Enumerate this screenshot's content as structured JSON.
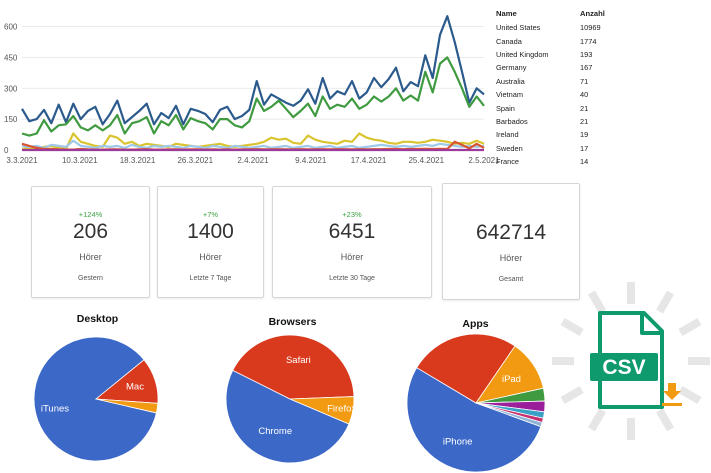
{
  "chart_data": [
    {
      "type": "line",
      "x_ticks": [
        "3.3.2021",
        "10.3.2021",
        "18.3.2021",
        "26.3.2021",
        "2.4.2021",
        "9.4.2021",
        "17.4.2021",
        "25.4.2021",
        "2.5.2021"
      ],
      "y_ticks": [
        "0",
        "150",
        "300",
        "450",
        "600"
      ],
      "ylim": [
        0,
        690
      ],
      "n_points": 64,
      "grid": true,
      "series": [
        {
          "color": "#2b5a8c",
          "values": [
            200,
            140,
            150,
            195,
            130,
            220,
            135,
            225,
            150,
            190,
            210,
            125,
            175,
            240,
            130,
            160,
            190,
            225,
            125,
            180,
            155,
            215,
            125,
            200,
            190,
            175,
            135,
            195,
            210,
            150,
            165,
            195,
            335,
            220,
            270,
            250,
            230,
            215,
            240,
            295,
            225,
            350,
            250,
            285,
            270,
            335,
            250,
            280,
            350,
            305,
            345,
            400,
            285,
            330,
            310,
            460,
            350,
            560,
            650,
            525,
            380,
            230,
            300,
            270
          ]
        },
        {
          "color": "#3f9a40",
          "values": [
            80,
            70,
            80,
            145,
            90,
            120,
            125,
            165,
            110,
            95,
            120,
            95,
            120,
            170,
            80,
            130,
            140,
            160,
            80,
            140,
            120,
            170,
            100,
            155,
            140,
            130,
            100,
            150,
            150,
            120,
            110,
            140,
            250,
            190,
            210,
            240,
            200,
            160,
            190,
            225,
            165,
            260,
            200,
            220,
            210,
            250,
            200,
            220,
            260,
            235,
            260,
            300,
            240,
            265,
            240,
            380,
            280,
            420,
            450,
            380,
            300,
            210,
            260,
            215
          ]
        },
        {
          "color": "#d9c42f",
          "values": [
            5,
            10,
            5,
            15,
            20,
            10,
            5,
            80,
            40,
            30,
            20,
            15,
            70,
            60,
            30,
            40,
            20,
            30,
            25,
            20,
            15,
            30,
            25,
            20,
            15,
            20,
            25,
            30,
            20,
            15,
            20,
            25,
            30,
            40,
            60,
            50,
            55,
            35,
            30,
            70,
            50,
            40,
            35,
            30,
            45,
            40,
            80,
            60,
            50,
            45,
            35,
            30,
            40,
            40,
            35,
            40,
            50,
            45,
            40,
            30,
            35,
            30,
            45,
            30
          ]
        },
        {
          "color": "#9ec9ea",
          "values": [
            20,
            15,
            20,
            10,
            25,
            20,
            15,
            45,
            20,
            15,
            10,
            20,
            15,
            20,
            10,
            25,
            15,
            10,
            20,
            15,
            20,
            15,
            10,
            20,
            15,
            10,
            20,
            15,
            10,
            20,
            15,
            10,
            15,
            20,
            10,
            15,
            20,
            10,
            15,
            20,
            10,
            15,
            20,
            10,
            15,
            20,
            10,
            15,
            20,
            25,
            20,
            15,
            20,
            15,
            20,
            25,
            20,
            30,
            25,
            20,
            15,
            20,
            15,
            20
          ]
        },
        {
          "color": "#d8542e",
          "values": [
            30,
            20,
            10,
            5,
            5,
            3,
            2,
            2,
            5,
            3,
            2,
            2,
            3,
            3,
            2,
            2,
            3,
            4,
            2,
            2,
            3,
            3,
            2,
            3,
            3,
            2,
            3,
            2,
            3,
            2,
            3,
            3,
            4,
            3,
            3,
            4,
            3,
            3,
            4,
            3,
            3,
            4,
            3,
            4,
            4,
            3,
            4,
            3,
            4,
            4,
            5,
            5,
            4,
            5,
            5,
            6,
            5,
            6,
            5,
            40,
            25,
            8,
            30,
            10
          ]
        },
        {
          "color": "#9c3a9c",
          "values": [
            0,
            0,
            0,
            0,
            0,
            0,
            0,
            0,
            0,
            0,
            0,
            0,
            0,
            0,
            0,
            0,
            0,
            0,
            0,
            0,
            0,
            0,
            0,
            0,
            0,
            0,
            0,
            0,
            0,
            0,
            0,
            0,
            0,
            0,
            0,
            0,
            0,
            0,
            0,
            0,
            0,
            0,
            0,
            0,
            0,
            0,
            0,
            0,
            0,
            0,
            0,
            0,
            0,
            0,
            0,
            0,
            0,
            0,
            0,
            0,
            0,
            0,
            0,
            0
          ]
        }
      ]
    },
    {
      "type": "pie",
      "title": "Desktop",
      "slices": [
        {
          "label": "iTunes",
          "value": 85.5,
          "color": "#3c69c7"
        },
        {
          "label": "Mac",
          "value": 12,
          "color": "#d9391c"
        },
        {
          "label": "",
          "value": 2.5,
          "color": "#f29a11"
        }
      ]
    },
    {
      "type": "pie",
      "title": "Browsers",
      "slices": [
        {
          "label": "Chrome",
          "value": 51,
          "color": "#3c69c7"
        },
        {
          "label": "Safari",
          "value": 42,
          "color": "#d9391c"
        },
        {
          "label": "Firefox",
          "value": 7,
          "color": "#f29a11"
        }
      ]
    },
    {
      "type": "pie",
      "title": "Apps",
      "slices": [
        {
          "label": "iPhone",
          "value": 53,
          "color": "#3c69c7"
        },
        {
          "label": "",
          "value": 26,
          "color": "#d9391c"
        },
        {
          "label": "iPad",
          "value": 12,
          "color": "#f29a11"
        },
        {
          "label": "",
          "value": 3,
          "color": "#3f9a40"
        },
        {
          "label": "",
          "value": 2.5,
          "color": "#9b1f9b"
        },
        {
          "label": "",
          "value": 1.5,
          "color": "#3aa0c6"
        },
        {
          "label": "",
          "value": 1,
          "color": "#c8306d"
        },
        {
          "label": "",
          "value": 1,
          "color": "#8fb4d8"
        }
      ]
    }
  ],
  "countries": {
    "header": {
      "name": "Name",
      "count": "Anzahl"
    },
    "rows": [
      {
        "name": "United States",
        "count": "10969"
      },
      {
        "name": "Canada",
        "count": "1774"
      },
      {
        "name": "United Kingdom",
        "count": "193"
      },
      {
        "name": "Germany",
        "count": "167"
      },
      {
        "name": "Australia",
        "count": "71"
      },
      {
        "name": "Vietnam",
        "count": "40"
      },
      {
        "name": "Spain",
        "count": "21"
      },
      {
        "name": "Barbados",
        "count": "21"
      },
      {
        "name": "Ireland",
        "count": "19"
      },
      {
        "name": "Sweden",
        "count": "17"
      },
      {
        "name": "France",
        "count": "14"
      }
    ]
  },
  "stats": [
    {
      "change": "+124%",
      "value": "206",
      "unit": "Hörer",
      "label": "Gestern"
    },
    {
      "change": "+7%",
      "value": "1400",
      "unit": "Hörer",
      "label": "Letzte 7 Tage"
    },
    {
      "change": "+23%",
      "value": "6451",
      "unit": "Hörer",
      "label": "Letzte 30 Tage"
    },
    {
      "change": "",
      "value": "642714",
      "unit": "Hörer",
      "label": "Gesamt"
    }
  ],
  "csv": {
    "text": "CSV",
    "icon": "csv-download-icon",
    "color": "#0e9a6c"
  }
}
